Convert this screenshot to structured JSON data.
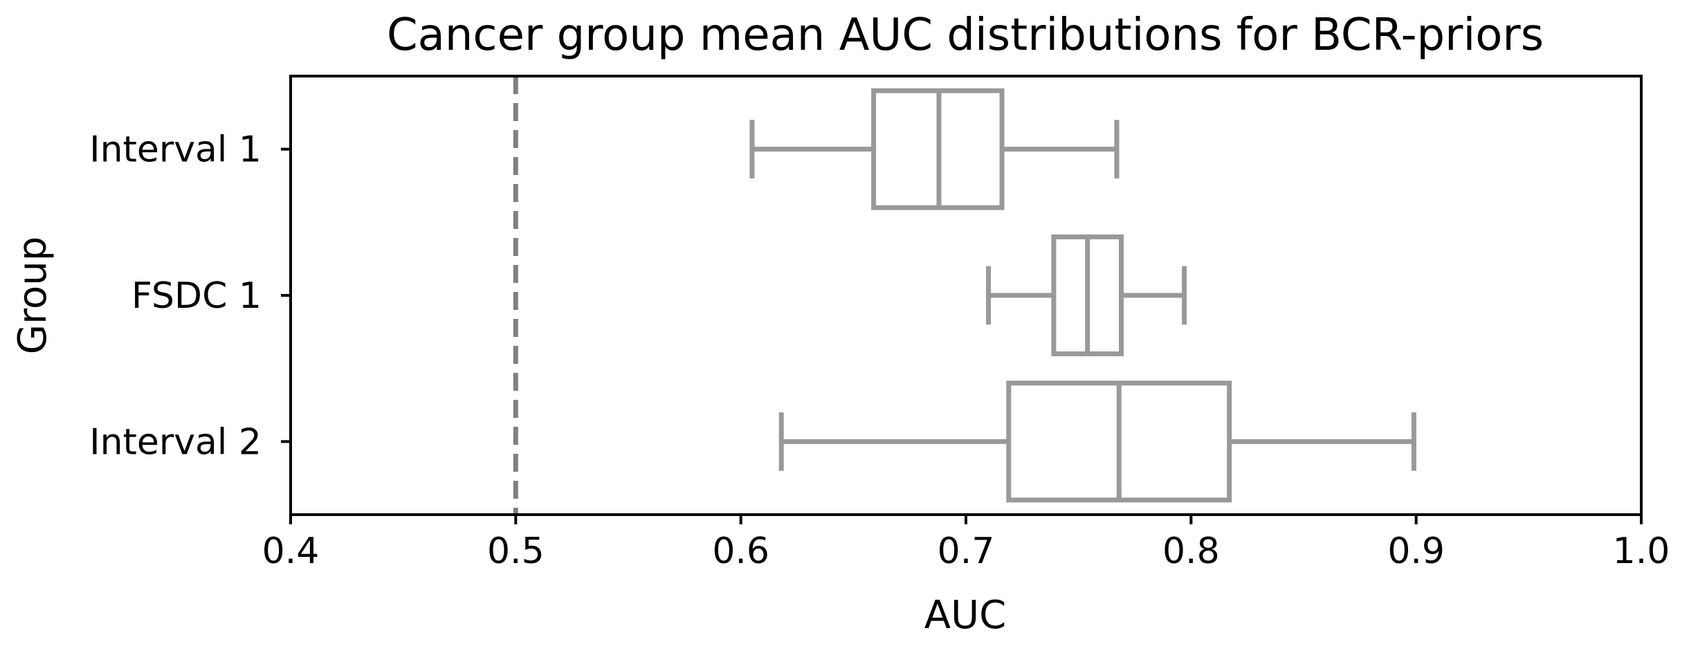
{
  "chart_data": {
    "type": "boxplot",
    "orientation": "horizontal",
    "title": "Cancer group mean AUC distributions for BCR-priors",
    "xlabel": "AUC",
    "ylabel": "Group",
    "xlim": [
      0.4,
      1.0
    ],
    "xticks": [
      "0.4",
      "0.5",
      "0.6",
      "0.7",
      "0.8",
      "0.9",
      "1.0"
    ],
    "reference_line": {
      "x": 0.5,
      "style": "dashed",
      "color": "#808080"
    },
    "box_color": "#999999",
    "grid": false,
    "groups": [
      {
        "label": "Interval 1",
        "whisker_low": 0.605,
        "q1": 0.659,
        "median": 0.688,
        "q3": 0.716,
        "whisker_high": 0.767
      },
      {
        "label": "FSDC 1",
        "whisker_low": 0.71,
        "q1": 0.739,
        "median": 0.754,
        "q3": 0.769,
        "whisker_high": 0.797
      },
      {
        "label": "Interval 2",
        "whisker_low": 0.618,
        "q1": 0.719,
        "median": 0.768,
        "q3": 0.817,
        "whisker_high": 0.899
      }
    ]
  }
}
